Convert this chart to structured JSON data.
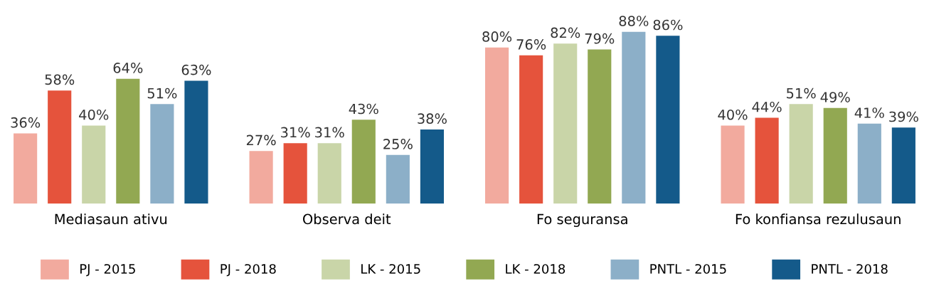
{
  "chart_data": {
    "type": "bar",
    "categories": [
      "Mediasaun ativu",
      "Observa deit",
      "Fo seguransa",
      "Fo konfiansa rezulusaun"
    ],
    "series": [
      {
        "name": "PJ - 2015",
        "color": "#f2aa9e",
        "values": [
          36,
          27,
          80,
          40
        ],
        "value_labels": [
          "36%",
          "27%",
          "80%",
          "40%"
        ]
      },
      {
        "name": "PJ - 2018",
        "color": "#e5533c",
        "values": [
          58,
          31,
          76,
          44
        ],
        "value_labels": [
          "58%",
          "31%",
          "76%",
          "44%"
        ]
      },
      {
        "name": "LK - 2015",
        "color": "#c9d5a8",
        "values": [
          40,
          31,
          82,
          51
        ],
        "value_labels": [
          "40%",
          "31%",
          "82%",
          "51%"
        ]
      },
      {
        "name": "LK - 2018",
        "color": "#92a852",
        "values": [
          64,
          43,
          79,
          49
        ],
        "value_labels": [
          "64%",
          "43%",
          "79%",
          "49%"
        ]
      },
      {
        "name": "PNTL - 2015",
        "color": "#8cafc8",
        "values": [
          51,
          25,
          88,
          41
        ],
        "value_labels": [
          "51%",
          "25%",
          "88%",
          "41%"
        ]
      },
      {
        "name": "PNTL - 2018",
        "color": "#145a8a",
        "values": [
          63,
          38,
          86,
          39
        ],
        "value_labels": [
          "63%",
          "38%",
          "86%",
          "39%"
        ]
      }
    ],
    "legend": "bottom",
    "grid": false
  }
}
